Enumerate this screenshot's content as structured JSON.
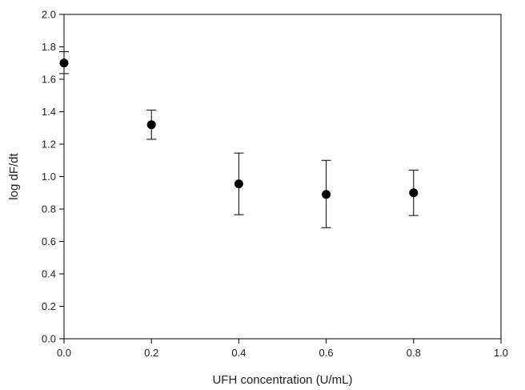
{
  "chart_data": {
    "type": "scatter",
    "xlabel": "UFH concentration (U/mL)",
    "ylabel": "log dF/dt",
    "xlim": [
      0.0,
      1.0
    ],
    "ylim": [
      0.0,
      2.0
    ],
    "x_ticks": [
      "0.0",
      "0.2",
      "0.4",
      "0.6",
      "0.8",
      "1.0"
    ],
    "y_ticks": [
      "0.0",
      "0.2",
      "0.4",
      "0.6",
      "0.8",
      "1.0",
      "1.2",
      "1.4",
      "1.6",
      "1.8",
      "2.0"
    ],
    "grid": false,
    "series": [
      {
        "x": [
          0.0,
          0.2,
          0.4,
          0.6,
          0.8
        ],
        "y": [
          1.7,
          1.32,
          0.955,
          0.89,
          0.9
        ],
        "err_low": [
          1.635,
          1.23,
          0.765,
          0.685,
          0.76
        ],
        "err_high": [
          1.77,
          1.41,
          1.145,
          1.1,
          1.04
        ],
        "color": "#000000"
      }
    ]
  }
}
